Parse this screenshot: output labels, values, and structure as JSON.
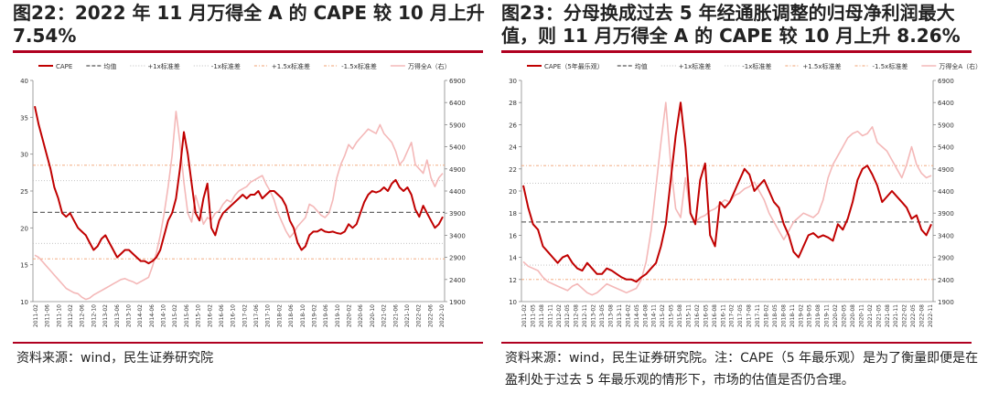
{
  "panels": [
    {
      "title": "图22：2022 年 11 月万得全 A 的 CAPE 较 10 月上升 7.54%",
      "source": "资料来源：wind，民生证券研究院",
      "chart_data": {
        "type": "line",
        "legend": [
          "CAPE",
          "均值",
          "+1x标准差",
          "-1x标准差",
          "+1.5x标准差",
          "-1.5x标准差",
          "万得全A（右）"
        ],
        "legend_placement": "top",
        "ylim_left": [
          10,
          40
        ],
        "left_ticks": [
          "10",
          "15",
          "20",
          "25",
          "30",
          "35",
          "40"
        ],
        "ylim_right": [
          1900,
          6900
        ],
        "right_ticks": [
          "1900",
          "2400",
          "2900",
          "3400",
          "3900",
          "4400",
          "4900",
          "5400",
          "5900",
          "6400",
          "6900"
        ],
        "x_ticks": [
          "2011-02",
          "2011-06",
          "2011-10",
          "2012-02",
          "2012-06",
          "2012-10",
          "2013-02",
          "2013-06",
          "2013-10",
          "2014-02",
          "2014-06",
          "2014-10",
          "2015-02",
          "2015-06",
          "2015-10",
          "2016-02",
          "2016-06",
          "2016-10",
          "2017-02",
          "2017-06",
          "2017-10",
          "2018-02",
          "2018-06",
          "2018-10",
          "2019-02",
          "2019-06",
          "2019-10",
          "2020-02",
          "2020-06",
          "2020-10",
          "2021-02",
          "2021-06",
          "2021-10",
          "2022-02",
          "2022-06",
          "2022-10"
        ],
        "hlines": {
          "mean": 22.1,
          "plus1": 26.4,
          "minus1": 17.9,
          "plus15": 28.5,
          "minus15": 15.8
        },
        "series": [
          {
            "name": "CAPE",
            "axis": "left",
            "values": [
              36.5,
              34,
              32,
              30,
              28,
              25.5,
              24,
              22,
              21.5,
              22,
              21,
              20,
              19.5,
              19,
              18,
              17,
              17.5,
              18.5,
              19,
              18,
              17,
              16,
              16.5,
              17,
              17,
              16.5,
              16,
              15.5,
              15.5,
              15.2,
              15.5,
              16,
              17,
              19,
              21,
              22,
              24,
              28,
              33,
              30,
              26,
              22,
              21,
              24,
              26,
              20,
              19,
              21,
              22,
              22.5,
              23,
              23.5,
              24,
              24.5,
              24,
              24.5,
              24.5,
              25,
              24,
              24.5,
              25,
              25,
              24.5,
              24,
              23,
              21,
              20,
              18,
              17,
              17.5,
              19,
              19.5,
              19.5,
              19.8,
              19.5,
              19.4,
              19.5,
              19.3,
              19.2,
              19.5,
              20.5,
              20,
              20.5,
              22,
              23.5,
              24.5,
              25,
              24.8,
              25,
              25.5,
              25,
              26,
              26.5,
              25.5,
              25,
              25.5,
              24.5,
              22.5,
              21.5,
              23,
              22,
              21,
              20,
              20.5,
              21.5
            ]
          },
          {
            "name": "万得全A（右）",
            "axis": "right",
            "values": [
              2950,
              2900,
              2800,
              2700,
              2600,
              2500,
              2400,
              2300,
              2200,
              2150,
              2100,
              2080,
              2000,
              1950,
              1980,
              2050,
              2100,
              2150,
              2200,
              2250,
              2300,
              2350,
              2400,
              2420,
              2380,
              2350,
              2300,
              2350,
              2400,
              2450,
              2700,
              3000,
              3400,
              3900,
              4500,
              5200,
              6200,
              5500,
              4600,
              3900,
              3700,
              4300,
              4000,
              3650,
              3800,
              3750,
              3900,
              3950,
              4100,
              4200,
              4150,
              4300,
              4400,
              4450,
              4500,
              4600,
              4650,
              4700,
              4750,
              4550,
              4400,
              4200,
              3900,
              3700,
              3500,
              3350,
              3450,
              3600,
              3700,
              3800,
              4100,
              4050,
              3950,
              3850,
              3800,
              3900,
              4200,
              4700,
              5000,
              5200,
              5450,
              5350,
              5500,
              5600,
              5700,
              5800,
              5750,
              5700,
              5900,
              5700,
              5600,
              5500,
              5300,
              5000,
              5100,
              5300,
              5500,
              5000,
              4900,
              4800,
              5100,
              4700,
              4500,
              4700,
              4800
            ]
          }
        ]
      }
    },
    {
      "title": "图23：分母换成过去 5 年经通胀调整的归母净利润最大值，则 11 月万得全 A 的 CAPE 较 10 月上升 8.26%",
      "source": "资料来源：wind，民生证券研究院。注：CAPE（5 年最乐观）是为了衡量即便是在盈利处于过去 5 年最乐观的情形下，市场的估值是否仍合理。",
      "chart_data": {
        "type": "line",
        "legend": [
          "CAPE（5年最乐观）",
          "均值",
          "+1x标准差",
          "-1x标准差",
          "+1.5x标准差",
          "-1.5x标准差",
          "万得全A（右）"
        ],
        "legend_placement": "top",
        "ylim_left": [
          10,
          30
        ],
        "left_ticks": [
          "10",
          "12",
          "14",
          "16",
          "18",
          "20",
          "22",
          "24",
          "26",
          "28",
          "30"
        ],
        "ylim_right": [
          1900,
          6900
        ],
        "right_ticks": [
          "1900",
          "2400",
          "2900",
          "3400",
          "3900",
          "4400",
          "4900",
          "5400",
          "5900",
          "6400",
          "6900"
        ],
        "x_ticks": [
          "2011-02",
          "2011-05",
          "2011-08",
          "2011-11",
          "2012-02",
          "2012-05",
          "2012-08",
          "2012-11",
          "2013-02",
          "2013-05",
          "2013-08",
          "2013-11",
          "2014-02",
          "2014-05",
          "2014-08",
          "2014-11",
          "2015-02",
          "2015-05",
          "2015-08",
          "2015-11",
          "2016-02",
          "2016-05",
          "2016-08",
          "2016-11",
          "2017-02",
          "2017-05",
          "2017-08",
          "2017-11",
          "2018-02",
          "2018-05",
          "2018-08",
          "2018-11",
          "2019-02",
          "2019-05",
          "2019-08",
          "2019-11",
          "2020-02",
          "2020-05",
          "2020-08",
          "2020-11",
          "2021-02",
          "2021-05",
          "2021-08",
          "2021-11",
          "2022-02",
          "2022-05",
          "2022-08",
          "2022-11"
        ],
        "hlines": {
          "mean": 17.2,
          "plus1": 20.7,
          "minus1": 13.3,
          "plus15": 22.3,
          "minus15": 12.0
        },
        "series": [
          {
            "name": "CAPE（5年最乐观）",
            "axis": "left",
            "values": [
              20.5,
              18.5,
              17,
              16.5,
              15,
              14.5,
              14,
              13.5,
              14,
              14.2,
              13.5,
              13,
              12.8,
              13.5,
              13,
              12.5,
              12.5,
              13,
              12.8,
              12.5,
              12.2,
              12,
              12,
              11.8,
              12.2,
              12.5,
              13,
              13.5,
              15,
              17,
              21,
              25,
              28,
              24,
              18,
              17,
              21,
              22.5,
              16,
              15,
              19,
              18.5,
              19,
              20,
              21,
              22,
              21.5,
              20,
              20.5,
              21,
              20,
              19,
              18.5,
              17,
              16,
              14.5,
              14,
              15,
              16,
              16.2,
              15.8,
              16,
              15.8,
              15.5,
              17,
              16.5,
              17.5,
              19,
              21,
              22,
              22.3,
              21.5,
              20.5,
              19,
              19.5,
              20,
              19.5,
              19,
              18.5,
              17.5,
              17.8,
              16.5,
              16,
              17
            ]
          },
          {
            "name": "万得全A（右）",
            "axis": "right",
            "values": [
              2800,
              2700,
              2650,
              2600,
              2450,
              2350,
              2300,
              2250,
              2200,
              2150,
              2250,
              2300,
              2200,
              2100,
              2050,
              2100,
              2200,
              2300,
              2250,
              2200,
              2150,
              2100,
              2150,
              2200,
              2400,
              2800,
              3500,
              4500,
              5500,
              6400,
              5000,
              4000,
              3800,
              4700,
              3900,
              3700,
              3800,
              3850,
              3950,
              4000,
              4100,
              4200,
              4150,
              4300,
              4350,
              4450,
              4500,
              4600,
              4400,
              4200,
              3900,
              3700,
              3500,
              3300,
              3500,
              3700,
              3800,
              3900,
              3850,
              3800,
              3900,
              4200,
              4700,
              5000,
              5200,
              5400,
              5600,
              5700,
              5750,
              5650,
              5700,
              5850,
              5500,
              5400,
              5300,
              5100,
              4900,
              4700,
              5000,
              5400,
              5000,
              4800,
              4700,
              4750
            ]
          }
        ]
      }
    }
  ]
}
